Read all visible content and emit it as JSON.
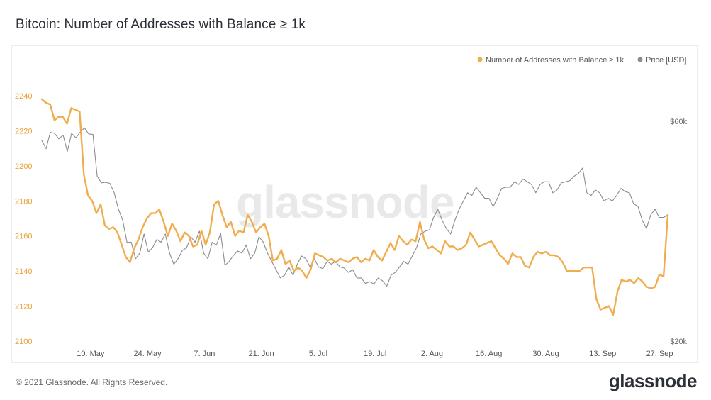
{
  "title": "Bitcoin: Number of Addresses with Balance ≥ 1k",
  "footer": "© 2021 Glassnode. All Rights Reserved.",
  "brand": "glassnode",
  "watermark": "glassnode",
  "chart_data": {
    "type": "line",
    "title": "Bitcoin: Number of Addresses with Balance ≥ 1k",
    "legend": [
      {
        "name": "Number of Addresses with Balance ≥ 1k",
        "color": "#f0ad4e"
      },
      {
        "name": "Price [USD]",
        "color": "#8c8c8c"
      }
    ],
    "legend_position": "top-right",
    "x_ticks": [
      "10. May",
      "24. May",
      "7. Jun",
      "21. Jun",
      "5. Jul",
      "19. Jul",
      "2. Aug",
      "16. Aug",
      "30. Aug",
      "13. Sep",
      "27. Sep"
    ],
    "y_left": {
      "ticks": [
        "2100",
        "2120",
        "2140",
        "2160",
        "2180",
        "2200",
        "2220",
        "2240"
      ],
      "min": 2100,
      "max": 2240,
      "color": "#f0ad4e"
    },
    "y_right": {
      "ticks": [
        "$20k",
        "$60k"
      ],
      "min": 20000,
      "max": 60000
    },
    "grid": false,
    "x_start": "2021-04-28",
    "x_end": "2021-09-29",
    "series": [
      {
        "name": "Number of Addresses with Balance ≥ 1k",
        "axis": "left",
        "color": "#f0ad4e",
        "values": [
          2238,
          2236,
          2235,
          2226,
          2228,
          2228,
          2224,
          2233,
          2232,
          2231,
          2195,
          2183,
          2180,
          2173,
          2178,
          2166,
          2164,
          2165,
          2162,
          2155,
          2148,
          2145,
          2153,
          2158,
          2165,
          2170,
          2173,
          2173,
          2175,
          2168,
          2160,
          2167,
          2163,
          2157,
          2162,
          2160,
          2154,
          2155,
          2163,
          2155,
          2162,
          2178,
          2180,
          2172,
          2165,
          2168,
          2160,
          2163,
          2162,
          2172,
          2168,
          2162,
          2165,
          2167,
          2160,
          2146,
          2147,
          2152,
          2144,
          2146,
          2140,
          2142,
          2140,
          2136,
          2141,
          2150,
          2149,
          2148,
          2146,
          2147,
          2145,
          2147,
          2146,
          2145,
          2147,
          2148,
          2145,
          2147,
          2146,
          2152,
          2148,
          2146,
          2151,
          2156,
          2152,
          2160,
          2157,
          2155,
          2158,
          2157,
          2168,
          2158,
          2153,
          2154,
          2152,
          2150,
          2157,
          2154,
          2154,
          2152,
          2153,
          2155,
          2162,
          2158,
          2154,
          2155,
          2156,
          2157,
          2153,
          2149,
          2147,
          2144,
          2150,
          2148,
          2148,
          2143,
          2142,
          2148,
          2151,
          2150,
          2151,
          2149,
          2149,
          2148,
          2145,
          2140,
          2140,
          2140,
          2140,
          2142,
          2142,
          2142,
          2124,
          2118,
          2119,
          2120,
          2115,
          2128,
          2135,
          2134,
          2135,
          2133,
          2136,
          2134,
          2131,
          2130,
          2131,
          2138,
          2137,
          2172
        ]
      },
      {
        "name": "Price [USD]",
        "axis": "right",
        "color": "#8c8c8c",
        "values": [
          56500,
          55000,
          58000,
          57800,
          56800,
          57500,
          54500,
          57800,
          57000,
          58000,
          58800,
          57700,
          57600,
          50000,
          48800,
          48900,
          48700,
          47000,
          44000,
          42000,
          38000,
          38000,
          35000,
          36000,
          39500,
          36200,
          37000,
          38500,
          38000,
          39500,
          36000,
          34000,
          35000,
          36500,
          37000,
          39000,
          38000,
          40000,
          36000,
          35000,
          38000,
          37500,
          39600,
          33800,
          34500,
          35600,
          36400,
          36000,
          37500,
          35000,
          36000,
          39000,
          38000,
          36000,
          34500,
          33000,
          31500,
          32000,
          33500,
          32000,
          34000,
          35500,
          35000,
          33500,
          35000,
          33500,
          33200,
          34500,
          34000,
          34500,
          33500,
          33300,
          32500,
          33000,
          31500,
          31500,
          30500,
          30800,
          30400,
          31500,
          31000,
          30000,
          32000,
          32500,
          33500,
          34500,
          34000,
          35500,
          37000,
          39500,
          40000,
          40200,
          42500,
          44000,
          42000,
          40500,
          39500,
          42000,
          44000,
          45500,
          47000,
          46500,
          48000,
          47000,
          46000,
          46000,
          44500,
          46000,
          47800,
          48000,
          48000,
          49000,
          48500,
          49500,
          49000,
          48500,
          47000,
          48500,
          49000,
          49000,
          47000,
          47500,
          48800,
          49000,
          49200,
          50000,
          50500,
          51500,
          47000,
          46500,
          47500,
          47000,
          45500,
          46000,
          45500,
          46500,
          47800,
          47200,
          47000,
          45000,
          44500,
          42000,
          40500,
          43000,
          44000,
          42500,
          42500,
          43000
        ]
      }
    ]
  }
}
